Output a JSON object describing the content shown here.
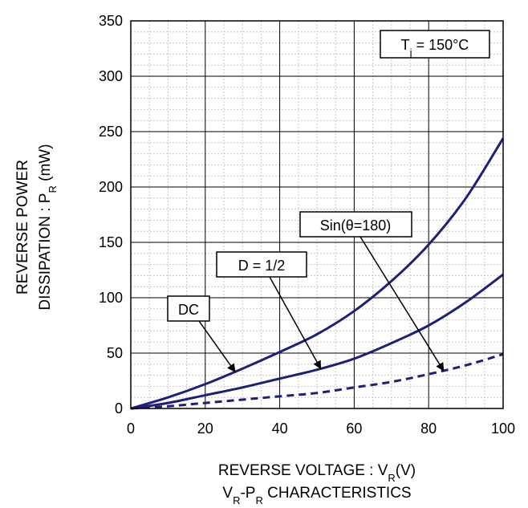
{
  "chart_data": {
    "type": "line",
    "title": "",
    "condition": "T_j = 150°C",
    "xlabel": "REVERSE VOLTAGE : V_R(V)",
    "ylabel_line1": "REVERSE POWER",
    "ylabel_line2": "DISSIPATION : P_R (mW)",
    "caption": "V_R-P_R CHARACTERISTICS",
    "xlim": [
      0,
      100
    ],
    "ylim": [
      0,
      350
    ],
    "xticks": [
      0,
      20,
      40,
      60,
      80,
      100
    ],
    "yticks": [
      0,
      50,
      100,
      150,
      200,
      250,
      300,
      350
    ],
    "grid": true,
    "minor_grid": true,
    "x": [
      0,
      10,
      20,
      30,
      40,
      50,
      60,
      70,
      80,
      90,
      100
    ],
    "series": [
      {
        "name": "DC",
        "style": "solid",
        "values": [
          0,
          10,
          22,
          36,
          51,
          67,
          88,
          115,
          148,
          190,
          244
        ]
      },
      {
        "name": "D = 1/2",
        "style": "solid",
        "values": [
          0,
          5,
          12,
          19,
          27,
          35,
          45,
          59,
          75,
          96,
          121
        ]
      },
      {
        "name": "Sin(θ=180)",
        "style": "dashed",
        "values": [
          0,
          2,
          5,
          8,
          11,
          14,
          19,
          24,
          31,
          39,
          49
        ]
      }
    ],
    "annotations": [
      {
        "label": "DC",
        "target_series": 0,
        "target_x": 28
      },
      {
        "label": "D = 1/2",
        "target_series": 1,
        "target_x": 51
      },
      {
        "label": "Sin(θ=180)",
        "target_series": 2,
        "target_x": 84
      }
    ],
    "line_color": "#1f1f7a"
  }
}
